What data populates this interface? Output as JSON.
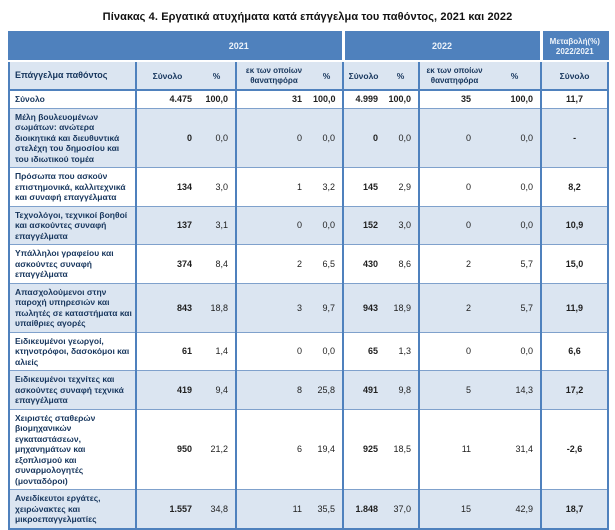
{
  "title": "Πίνακας 4. Εργατικά ατυχήματα κατά επάγγελμα του παθόντος, 2021 και 2022",
  "colors": {
    "header_band_blue": "#4F81BD",
    "light_row_blue": "#DBE5F1",
    "border_blue": "#4F81BD",
    "header_text_navy": "#17365D"
  },
  "table": {
    "band": {
      "y2021": "2021",
      "y2022": "2022",
      "change": "Μεταβολή(%) 2022/2021"
    },
    "headers": {
      "occupation": "Επάγγελμα παθόντος",
      "total": "Σύνολο",
      "pct": "%",
      "fatal": "εκ των οποίων θανατηφόρα",
      "change_total": "Σύνολο"
    },
    "rows": [
      {
        "occupation": "Σύνολο",
        "values": [
          "4.475",
          "100,0",
          "31",
          "100,0",
          "4.999",
          "100,0",
          "35",
          "100,0",
          "11,7"
        ]
      },
      {
        "occupation": "Μέλη βουλευομένων σωμάτων: ανώτερα διοικητικά και διευθυντικά στελέχη του δημοσίου και του ιδιωτικού τομέα",
        "values": [
          "0",
          "0,0",
          "0",
          "0,0",
          "0",
          "0,0",
          "0",
          "0,0",
          "-"
        ]
      },
      {
        "occupation": "Πρόσωπα που ασκούν επιστημονικά, καλλιτεχνικά και συναφή επαγγέλματα",
        "values": [
          "134",
          "3,0",
          "1",
          "3,2",
          "145",
          "2,9",
          "0",
          "0,0",
          "8,2"
        ]
      },
      {
        "occupation": "Τεχνολόγοι, τεχνικοί βοηθοί και ασκούντες συναφή επαγγέλματα",
        "values": [
          "137",
          "3,1",
          "0",
          "0,0",
          "152",
          "3,0",
          "0",
          "0,0",
          "10,9"
        ]
      },
      {
        "occupation": "Υπάλληλοι γραφείου και ασκούντες συναφή επαγγέλματα",
        "values": [
          "374",
          "8,4",
          "2",
          "6,5",
          "430",
          "8,6",
          "2",
          "5,7",
          "15,0"
        ]
      },
      {
        "occupation": "Απασχολούμενοι στην παροχή υπηρεσιών και πωλητές σε καταστήματα και υπαίθριες αγορές",
        "values": [
          "843",
          "18,8",
          "3",
          "9,7",
          "943",
          "18,9",
          "2",
          "5,7",
          "11,9"
        ]
      },
      {
        "occupation": "Ειδικευμένοι γεωργοί, κτηνοτρόφοι, δασοκόμοι και αλιείς",
        "values": [
          "61",
          "1,4",
          "0",
          "0,0",
          "65",
          "1,3",
          "0",
          "0,0",
          "6,6"
        ]
      },
      {
        "occupation": "Ειδικευμένοι τεχνίτες και ασκούντες συναφή τεχνικά επαγγέλματα",
        "values": [
          "419",
          "9,4",
          "8",
          "25,8",
          "491",
          "9,8",
          "5",
          "14,3",
          "17,2"
        ]
      },
      {
        "occupation": "Χειριστές σταθερών βιομηχανικών εγκαταστάσεων, μηχανημάτων και εξοπλισμού και συναρμολογητές (μονταδόροι)",
        "values": [
          "950",
          "21,2",
          "6",
          "19,4",
          "925",
          "18,5",
          "11",
          "31,4",
          "-2,6"
        ]
      },
      {
        "occupation": "Ανειδίκευτοι εργάτες, χειρώνακτες και μικροεπαγγελματίες",
        "values": [
          "1.557",
          "34,8",
          "11",
          "35,5",
          "1.848",
          "37,0",
          "15",
          "42,9",
          "18,7"
        ]
      }
    ]
  }
}
